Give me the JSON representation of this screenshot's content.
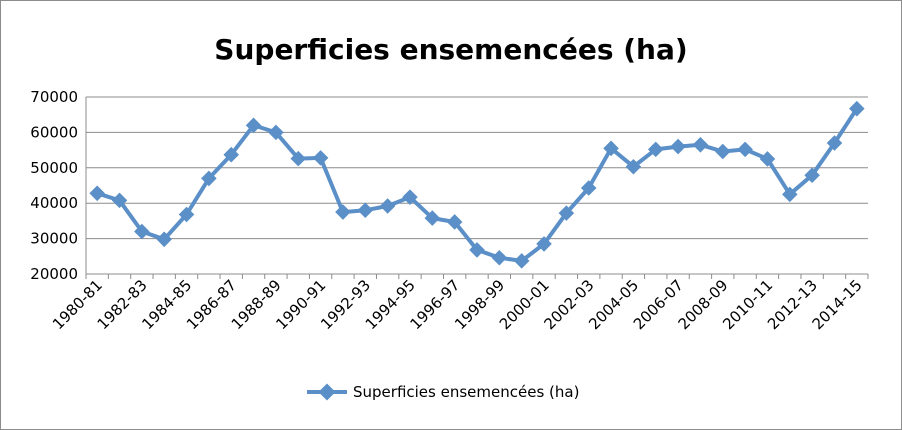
{
  "chart_data": {
    "type": "line",
    "title": "Superficies ensemencées (ha)",
    "xlabel": "",
    "ylabel": "",
    "ylim": [
      20000,
      70000
    ],
    "yticks": [
      20000,
      30000,
      40000,
      50000,
      60000,
      70000
    ],
    "grid": true,
    "legend_position": "bottom",
    "color": "#5b8fc7",
    "categories": [
      "1980-81",
      "1981-82",
      "1982-83",
      "1983-84",
      "1984-85",
      "1985-86",
      "1986-87",
      "1987-88",
      "1988-89",
      "1989-90",
      "1990-91",
      "1991-92",
      "1992-93",
      "1993-94",
      "1994-95",
      "1995-96",
      "1996-97",
      "1997-98",
      "1998-99",
      "1999-00",
      "2000-01",
      "2001-02",
      "2002-03",
      "2003-04",
      "2004-05",
      "2005-06",
      "2006-07",
      "2007-08",
      "2008-09",
      "2009-10",
      "2010-11",
      "2011-12",
      "2012-13",
      "2013-14",
      "2014-15"
    ],
    "category_labels": [
      "1980-81",
      "",
      "1982-83",
      "",
      "1984-85",
      "",
      "1986-87",
      "",
      "1988-89",
      "",
      "1990-91",
      "",
      "1992-93",
      "",
      "1994-95",
      "",
      "1996-97",
      "",
      "1998-99",
      "",
      "2000-01",
      "",
      "2002-03",
      "",
      "2004-05",
      "",
      "2006-07",
      "",
      "2008-09",
      "",
      "2010-11",
      "",
      "2012-13",
      "",
      "2014-15"
    ],
    "series": [
      {
        "name": "Superficies ensemencées (ha)",
        "values": [
          42800,
          40800,
          32000,
          29800,
          36800,
          47000,
          53700,
          62000,
          60000,
          52600,
          52800,
          37500,
          38000,
          39200,
          41700,
          35800,
          34700,
          26800,
          24600,
          23700,
          28500,
          37200,
          44300,
          55500,
          50300,
          55200,
          56000,
          56500,
          54600,
          55200,
          52500,
          42500,
          47900,
          57000,
          66700
        ]
      }
    ]
  }
}
